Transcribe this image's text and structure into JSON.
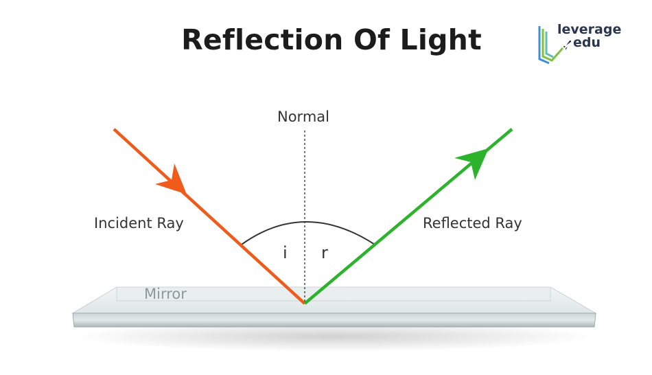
{
  "title": "Reflection Of Light",
  "logo": {
    "line1": "leverage",
    "line2": "edu",
    "icon": "rocket-icon"
  },
  "labels": {
    "normal": "Normal",
    "incident_ray": "Incident Ray",
    "reflected_ray": "Reflected Ray",
    "angle_incidence": "i",
    "angle_reflection": "r",
    "mirror": "Mirror"
  },
  "colors": {
    "incident_ray": "#f05a1a",
    "reflected_ray": "#2cb32c",
    "normal_line": "#333333",
    "arc": "#333333",
    "mirror_top": "#e3e9ea",
    "mirror_edge": "#a8b4b7",
    "logo_text": "#2a3550",
    "logo_accent_green": "#7dc242",
    "logo_accent_blue": "#3b8fd4"
  }
}
